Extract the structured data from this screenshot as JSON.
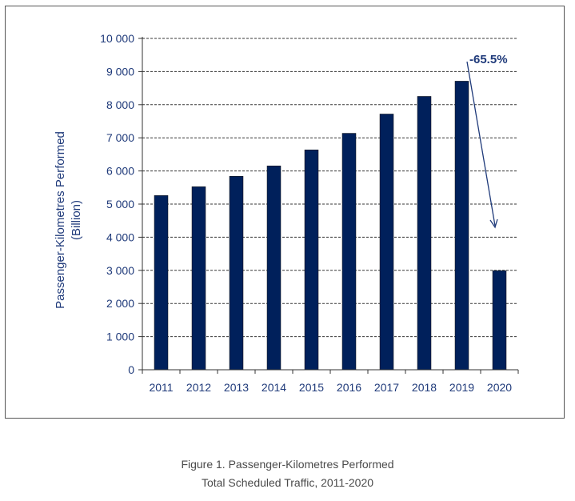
{
  "chart_data": {
    "type": "bar",
    "title": "",
    "categories": [
      "2011",
      "2012",
      "2013",
      "2014",
      "2015",
      "2016",
      "2017",
      "2018",
      "2019",
      "2020"
    ],
    "values": [
      5258,
      5524,
      5839,
      6153,
      6637,
      7137,
      7718,
      8250,
      8710,
      2992
    ],
    "xlabel": "",
    "ylabel": "Passenger-Kilometres Performed",
    "ylabel2": "(Billion)",
    "ylim": [
      0,
      10000
    ],
    "yticks": [
      0,
      1000,
      2000,
      3000,
      4000,
      5000,
      6000,
      7000,
      8000,
      9000,
      10000
    ],
    "ytick_labels": [
      "0",
      "1 000",
      "2 000",
      "3 000",
      "4 000",
      "5 000",
      "6 000",
      "7 000",
      "8 000",
      "9 000",
      "10 000"
    ],
    "grid": true,
    "annotation": "-65.5%",
    "bar_color": "#00205b",
    "text_color": "#1f3a7a"
  },
  "caption": {
    "line1": "Figure 1.    Passenger-Kilometres Performed",
    "line2": "Total Scheduled Traffic, 2011-2020"
  }
}
